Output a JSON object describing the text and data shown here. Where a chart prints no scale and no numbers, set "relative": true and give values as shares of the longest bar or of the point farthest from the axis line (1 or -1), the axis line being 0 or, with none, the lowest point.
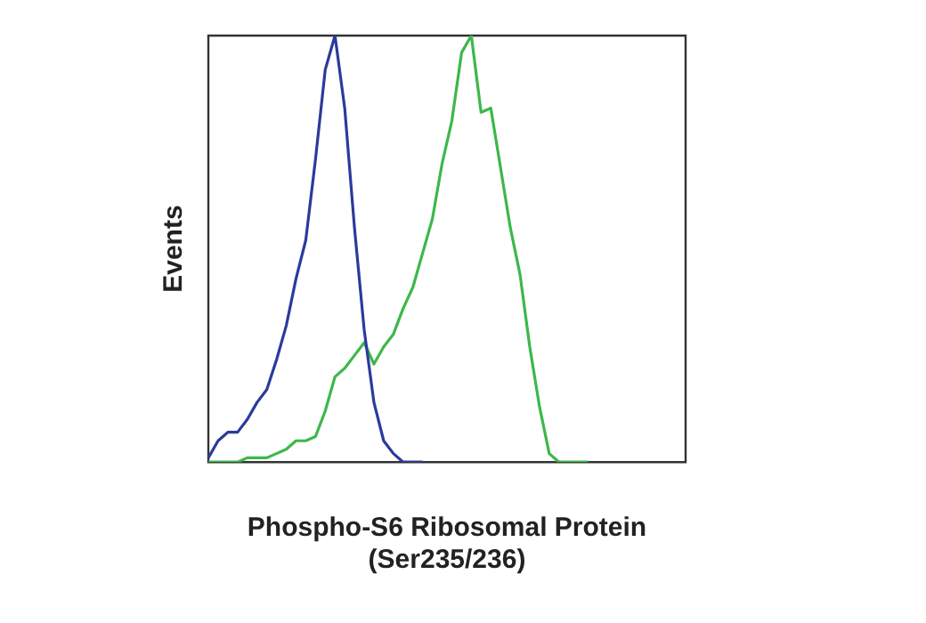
{
  "chart_data": {
    "type": "line",
    "xlabel": "Phospho-S6 Ribosomal Protein\n(Ser235/236)",
    "ylabel": "Events",
    "relative": true,
    "grid": false,
    "legend": false,
    "marker": "none",
    "categories": [
      null,
      null,
      null,
      null,
      null,
      null,
      null,
      null,
      null,
      null,
      null,
      null,
      null,
      null,
      null,
      null,
      null,
      null,
      null,
      null,
      null,
      null,
      null,
      null,
      null,
      null,
      null,
      null,
      null,
      null,
      null,
      null,
      null,
      null,
      null,
      null,
      null,
      null,
      null,
      null,
      null,
      null,
      null,
      null,
      null,
      null,
      null,
      null,
      null,
      null
    ],
    "series": [
      {
        "color": "#2b3a9e",
        "values": [
          0.01,
          0.05,
          0.07,
          0.07,
          0.1,
          0.14,
          0.17,
          0.24,
          0.32,
          0.43,
          0.52,
          0.71,
          0.92,
          1,
          0.83,
          0.55,
          0.31,
          0.14,
          0.05,
          0.02,
          0,
          0,
          0,
          null,
          null,
          null,
          null,
          null,
          null,
          null,
          null,
          null,
          null,
          null,
          null,
          null,
          null,
          null,
          null,
          null,
          null,
          null,
          null,
          null,
          null,
          null,
          null,
          null,
          null,
          null
        ]
      },
      {
        "color": "#3cb84a",
        "values": [
          0,
          0,
          0,
          0,
          0.01,
          0.01,
          0.01,
          0.02,
          0.03,
          0.05,
          0.05,
          0.06,
          0.12,
          0.2,
          0.22,
          0.25,
          0.28,
          0.23,
          0.27,
          0.3,
          0.36,
          0.41,
          0.49,
          0.57,
          0.7,
          0.8,
          0.96,
          1,
          0.82,
          0.83,
          0.69,
          0.55,
          0.44,
          0.27,
          0.13,
          0.02,
          0,
          0,
          0,
          0,
          null,
          null,
          null,
          null,
          null,
          null,
          null,
          null,
          null,
          null
        ]
      }
    ]
  }
}
